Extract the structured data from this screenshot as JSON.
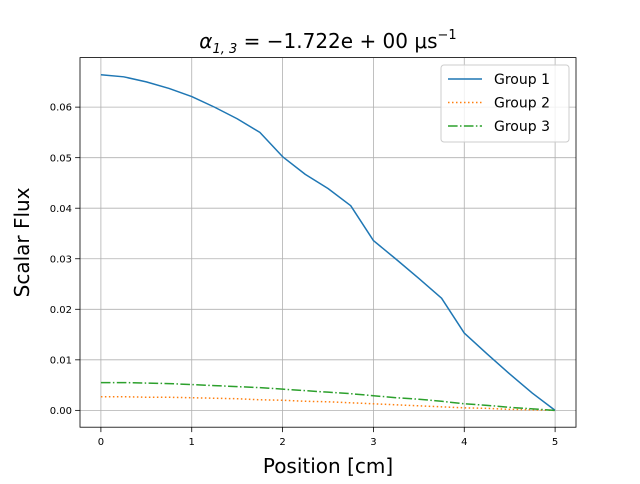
{
  "chart_data": {
    "type": "line",
    "title_text": "α",
    "title_sub": "1, 3",
    "title_rest": " = −1.722e + 00 μs",
    "title_sup": "−1",
    "xlabel": "Position [cm]",
    "ylabel": "Scalar Flux",
    "xlim": [
      -0.23,
      5.23
    ],
    "ylim": [
      -0.00333,
      0.0698
    ],
    "xticks": [
      0,
      1,
      2,
      3,
      4,
      5
    ],
    "xtick_labels": [
      "0",
      "1",
      "2",
      "3",
      "4",
      "5"
    ],
    "yticks": [
      0.0,
      0.01,
      0.02,
      0.03,
      0.04,
      0.05,
      0.06
    ],
    "ytick_labels": [
      "0.00",
      "0.01",
      "0.02",
      "0.03",
      "0.04",
      "0.05",
      "0.06"
    ],
    "grid": true,
    "legend_position": "top-right",
    "x": [
      0,
      0.25,
      0.5,
      0.75,
      1.0,
      1.25,
      1.5,
      1.75,
      2.0,
      2.25,
      2.5,
      2.75,
      3.0,
      3.25,
      3.5,
      3.75,
      4.0,
      4.25,
      4.5,
      4.75,
      5.0
    ],
    "series": [
      {
        "name": "Group 1",
        "color": "#1f77b4",
        "style": "solid",
        "values": [
          0.0664,
          0.066,
          0.065,
          0.0637,
          0.0621,
          0.06,
          0.0577,
          0.055,
          0.0502,
          0.0467,
          0.0439,
          0.0405,
          0.0336,
          0.0299,
          0.0261,
          0.0222,
          0.0153,
          0.0112,
          0.0072,
          0.0034,
          0.0
        ]
      },
      {
        "name": "Group 2",
        "color": "#ff7f0e",
        "style": "dotted",
        "values": [
          0.0027,
          0.0027,
          0.0026,
          0.0026,
          0.0025,
          0.0024,
          0.0023,
          0.0021,
          0.002,
          0.0018,
          0.0017,
          0.0015,
          0.0013,
          0.0011,
          0.0009,
          0.0007,
          0.0005,
          0.0004,
          0.0002,
          0.0001,
          0.0
        ]
      },
      {
        "name": "Group 3",
        "color": "#2ca02c",
        "style": "dashdot",
        "values": [
          0.0055,
          0.0055,
          0.0054,
          0.0053,
          0.0051,
          0.0049,
          0.0047,
          0.0045,
          0.0042,
          0.0039,
          0.0036,
          0.0033,
          0.0029,
          0.0025,
          0.0022,
          0.0018,
          0.0013,
          0.001,
          0.0006,
          0.0003,
          0.0
        ]
      }
    ]
  }
}
